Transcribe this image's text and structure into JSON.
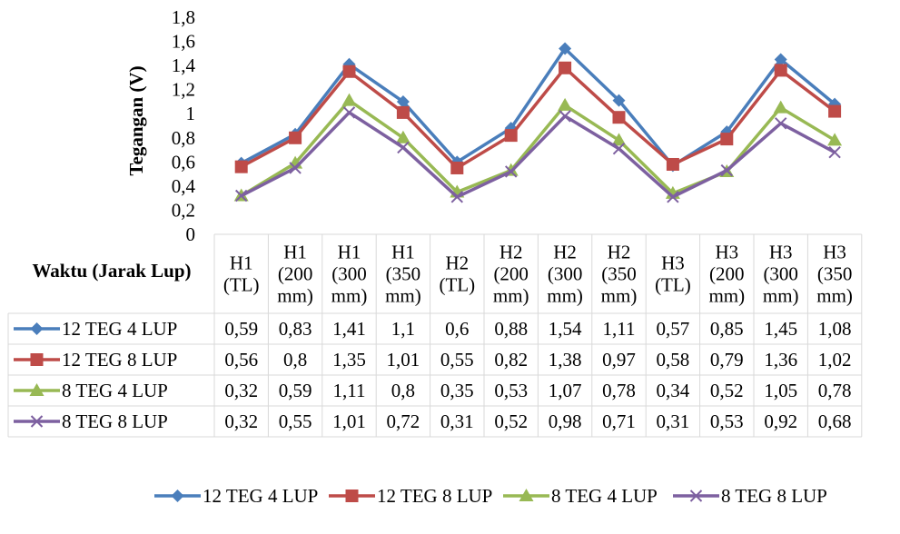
{
  "chart_data": {
    "type": "line",
    "ylabel": "Tegangan (V)",
    "xlabel": "Waktu (Jarak Lup)",
    "ylim": [
      0,
      1.8
    ],
    "yticks": [
      "0",
      "0,2",
      "0,4",
      "0,6",
      "0,8",
      "1",
      "1,2",
      "1,4",
      "1,6",
      "1,8"
    ],
    "grid": false,
    "legend_position": "bottom",
    "categories": [
      [
        "H1",
        "(TL)"
      ],
      [
        "H1",
        "(200",
        "mm)"
      ],
      [
        "H1",
        "(300",
        "mm)"
      ],
      [
        "H1",
        "(350",
        "mm)"
      ],
      [
        "H2",
        "(TL)"
      ],
      [
        "H2",
        "(200",
        "mm)"
      ],
      [
        "H2",
        "(300",
        "mm)"
      ],
      [
        "H2",
        "(350",
        "mm)"
      ],
      [
        "H3",
        "(TL)"
      ],
      [
        "H3",
        "(200",
        "mm)"
      ],
      [
        "H3",
        "(300",
        "mm)"
      ],
      [
        "H3",
        "(350",
        "mm)"
      ]
    ],
    "series": [
      {
        "name": "12 TEG 4 LUP",
        "color": "#4a7ebb",
        "marker": "diamond",
        "values": [
          0.59,
          0.83,
          1.41,
          1.1,
          0.6,
          0.88,
          1.54,
          1.11,
          0.57,
          0.85,
          1.45,
          1.08
        ],
        "labels": [
          "0,59",
          "0,83",
          "1,41",
          "1,1",
          "0,6",
          "0,88",
          "1,54",
          "1,11",
          "0,57",
          "0,85",
          "1,45",
          "1,08"
        ]
      },
      {
        "name": "12 TEG 8 LUP",
        "color": "#be4b48",
        "marker": "square",
        "values": [
          0.56,
          0.8,
          1.35,
          1.01,
          0.55,
          0.82,
          1.38,
          0.97,
          0.58,
          0.79,
          1.36,
          1.02
        ],
        "labels": [
          "0,56",
          "0,8",
          "1,35",
          "1,01",
          "0,55",
          "0,82",
          "1,38",
          "0,97",
          "0,58",
          "0,79",
          "1,36",
          "1,02"
        ]
      },
      {
        "name": "8 TEG 4 LUP",
        "color": "#98b954",
        "marker": "triangle",
        "values": [
          0.32,
          0.59,
          1.11,
          0.8,
          0.35,
          0.53,
          1.07,
          0.78,
          0.34,
          0.52,
          1.05,
          0.78
        ],
        "labels": [
          "0,32",
          "0,59",
          "1,11",
          "0,8",
          "0,35",
          "0,53",
          "1,07",
          "0,78",
          "0,34",
          "0,52",
          "1,05",
          "0,78"
        ]
      },
      {
        "name": "8 TEG 8 LUP",
        "color": "#7d60a0",
        "marker": "x",
        "values": [
          0.32,
          0.55,
          1.01,
          0.72,
          0.31,
          0.52,
          0.98,
          0.71,
          0.31,
          0.53,
          0.92,
          0.68
        ],
        "labels": [
          "0,32",
          "0,55",
          "1,01",
          "0,72",
          "0,31",
          "0,52",
          "0,98",
          "0,71",
          "0,31",
          "0,53",
          "0,92",
          "0,68"
        ]
      }
    ]
  }
}
